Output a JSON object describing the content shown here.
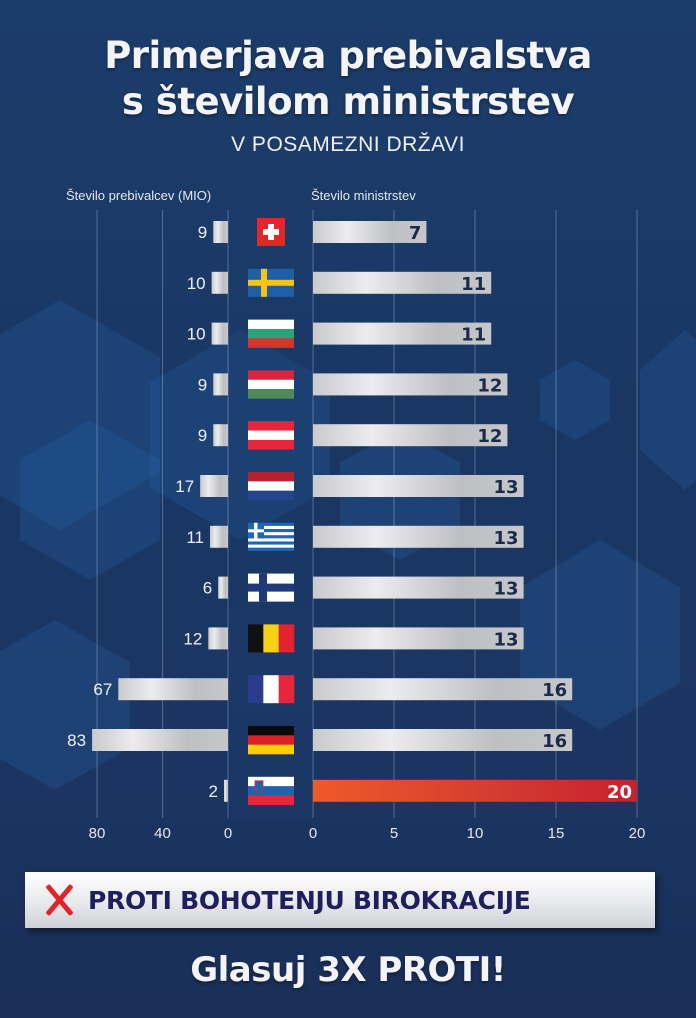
{
  "title_line1": "Primerjava prebivalstva",
  "title_line2": "s številom ministrstev",
  "subtitle": "V POSAMEZNI DRŽAVI",
  "banner": {
    "icon": "red-x-icon",
    "text": "PROTI BOHOTENJU BIROKRACIJE"
  },
  "cta": "Glasuj 3X PROTI!",
  "chart_data": {
    "type": "bar",
    "orientation": "horizontal-butterfly",
    "left_axis_title": "Število prebivalcev (MIO)",
    "right_axis_title": "Število ministrstev",
    "left_ticks": [
      "80",
      "40",
      "0"
    ],
    "right_ticks": [
      "0",
      "5",
      "10",
      "15",
      "20"
    ],
    "left_xlim": [
      0,
      80
    ],
    "right_xlim": [
      0,
      20
    ],
    "grid": true,
    "categories": [
      "Switzerland",
      "Sweden",
      "Bulgaria",
      "Hungary",
      "Austria",
      "Netherlands",
      "Greece",
      "Finland",
      "Belgium",
      "France",
      "Germany",
      "Slovenia"
    ],
    "flags": [
      "flag-switzerland",
      "flag-sweden",
      "flag-bulgaria",
      "flag-hungary",
      "flag-austria",
      "flag-netherlands",
      "flag-greece",
      "flag-finland",
      "flag-belgium",
      "flag-france",
      "flag-germany",
      "flag-slovenia"
    ],
    "series": [
      {
        "name": "Število prebivalcev (MIO)",
        "values": [
          9,
          10,
          10,
          9,
          9,
          17,
          11,
          6,
          12,
          67,
          83,
          2
        ]
      },
      {
        "name": "Število ministrstev",
        "values": [
          7,
          11,
          11,
          12,
          12,
          13,
          13,
          13,
          13,
          16,
          16,
          20
        ]
      }
    ],
    "highlight": "Slovenia",
    "colors": {
      "bar": "#d4d5d8",
      "highlight_start": "#f05a28",
      "highlight_end": "#c8202f",
      "value_label": "#1a2a4a",
      "highlight_label": "#ffffff"
    }
  }
}
